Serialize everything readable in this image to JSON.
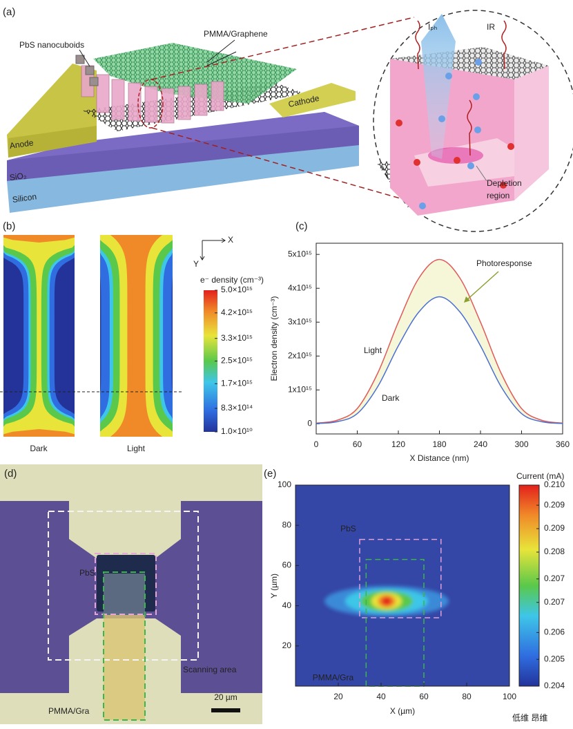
{
  "panel_labels": [
    "(a)",
    "(b)",
    "(c)",
    "(d)",
    "(e)"
  ],
  "panel_a": {
    "pbs": "PbS nanocuboids",
    "pmma": "PMMA/Graphene",
    "anode": "Anode",
    "sio2": "SiO₂",
    "silicon": "Silicon",
    "cathode": "Cathode",
    "iph": "Iₚₕ",
    "ir": "IR",
    "depletion": [
      "Depletion",
      "region"
    ]
  },
  "panel_b": {
    "x_axis": "X",
    "y_axis": "Y",
    "maps": [
      "Dark",
      "Light"
    ],
    "colorbar": {
      "title": "e⁻ density (cm⁻³)",
      "clim": [
        10000000000.0,
        5000000000000000.0
      ],
      "ticks": [
        {
          "value": 5000000000000000.0,
          "label": "5.0×10¹⁵"
        },
        {
          "value": 4200000000000000.0,
          "label": "4.2×10¹⁵"
        },
        {
          "value": 3300000000000000.0,
          "label": "3.3×10¹⁵"
        },
        {
          "value": 2500000000000000.0,
          "label": "2.5×10¹⁵"
        },
        {
          "value": 1700000000000000.0,
          "label": "1.7×10¹⁵"
        },
        {
          "value": 830000000000000.0,
          "label": "8.3×10¹⁴"
        },
        {
          "value": 10000000000.0,
          "label": "1.0×10¹⁰"
        }
      ]
    }
  },
  "chart_data": [
    {
      "type": "line",
      "xlabel": "X Distance (nm)",
      "ylabel": "Electron density (cm⁻³)",
      "annotation": "Photoresponse",
      "annotation_color": "#8aa030",
      "x": [
        0,
        30,
        60,
        90,
        120,
        150,
        180,
        210,
        240,
        270,
        300,
        330,
        360
      ],
      "series": [
        {
          "name": "Light",
          "color": "#e05a5a",
          "values": [
            20000000000000.0,
            100000000000000.0,
            450000000000000.0,
            1500000000000000.0,
            3000000000000000.0,
            4300000000000000.0,
            4850000000000000.0,
            4300000000000000.0,
            3000000000000000.0,
            1500000000000000.0,
            450000000000000.0,
            100000000000000.0,
            20000000000000.0
          ]
        },
        {
          "name": "Dark",
          "color": "#4a6fd0",
          "values": [
            10000000000000.0,
            60000000000000.0,
            300000000000000.0,
            1100000000000000.0,
            2300000000000000.0,
            3300000000000000.0,
            3750000000000000.0,
            3300000000000000.0,
            2300000000000000.0,
            1100000000000000.0,
            300000000000000.0,
            60000000000000.0,
            10000000000000.0
          ]
        }
      ],
      "xlim": [
        0,
        360
      ],
      "ylim": [
        -300000000000000.0,
        5330000000000000.0
      ],
      "xticks": [
        0,
        60,
        120,
        180,
        240,
        300,
        360
      ],
      "yticks": [
        0,
        {
          "value": 1000000000000000.0,
          "label": "1x10¹⁵"
        },
        {
          "value": 2000000000000000.0,
          "label": "2x10¹⁵"
        },
        {
          "value": 3000000000000000.0,
          "label": "3x10¹⁵"
        },
        {
          "value": 4000000000000000.0,
          "label": "4x10¹⁵"
        },
        {
          "value": 5000000000000000.0,
          "label": "5x10¹⁵"
        }
      ]
    },
    {
      "type": "heatmap",
      "xlabel": "X (µm)",
      "ylabel": "Y (µm)",
      "annotations": [
        "PbS",
        "PMMA/Gra"
      ],
      "xlim": [
        0,
        100
      ],
      "ylim": [
        0,
        100
      ],
      "xticks": [
        20,
        40,
        60,
        80,
        100
      ],
      "yticks": [
        20,
        40,
        60,
        80,
        100
      ],
      "colorbar": {
        "title": "Current (mA)",
        "clim": [
          0.204,
          0.21
        ],
        "ticks": [
          {
            "value": 0.21,
            "label": "0.210"
          },
          {
            "value": 0.2094,
            "label": "0.209"
          },
          {
            "value": 0.2087,
            "label": "0.209"
          },
          {
            "value": 0.208,
            "label": "0.208"
          },
          {
            "value": 0.2072,
            "label": "0.207"
          },
          {
            "value": 0.2065,
            "label": "0.207"
          },
          {
            "value": 0.2056,
            "label": "0.206"
          },
          {
            "value": 0.2048,
            "label": "0.205"
          },
          {
            "value": 0.204,
            "label": "0.204"
          }
        ]
      }
    }
  ],
  "panel_d": {
    "pbs": "PbS",
    "pmma": "PMMA/Gra",
    "scan": "Scanning area",
    "scale": "20 µm"
  },
  "watermark": "低维 昂维"
}
